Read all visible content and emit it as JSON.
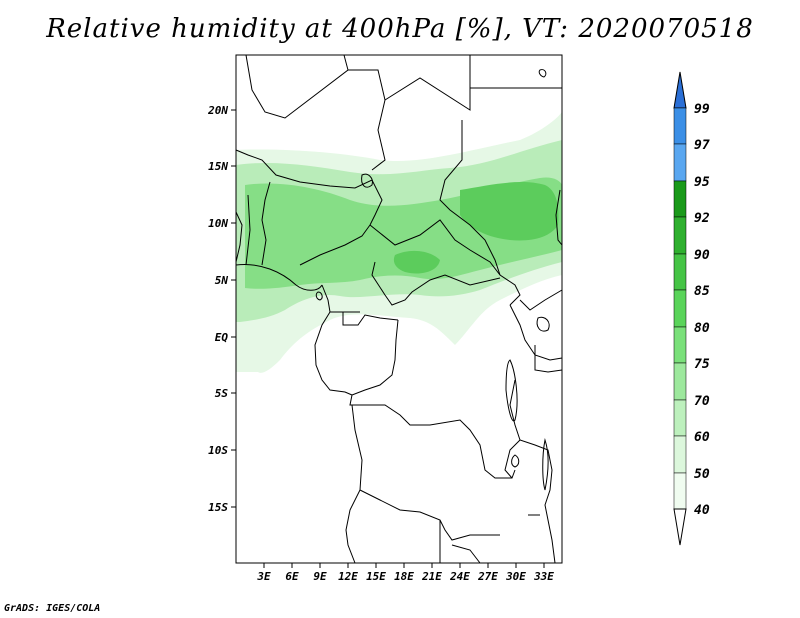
{
  "title": "Relative humidity at 400hPa [%], VT: 2020070518",
  "credit": "GrADS: IGES/COLA",
  "lat_labels": [
    "20N",
    "15N",
    "10N",
    "5N",
    "EQ",
    "5S",
    "10S",
    "15S"
  ],
  "lon_labels": [
    "3E",
    "6E",
    "9E",
    "12E",
    "15E",
    "18E",
    "21E",
    "24E",
    "27E",
    "30E",
    "33E"
  ],
  "colorbar": {
    "labels": [
      "99",
      "97",
      "95",
      "92",
      "90",
      "85",
      "80",
      "75",
      "70",
      "60",
      "50",
      "40"
    ],
    "colors": [
      "#2a6fd6",
      "#3b8fe6",
      "#5aa7f0",
      "#1a9a1a",
      "#2fb02f",
      "#45c445",
      "#5ad45a",
      "#7ae07a",
      "#9de89d",
      "#bdf0bd",
      "#dcf7dc",
      "#f0fcf0"
    ]
  },
  "humidity_colors": {
    "low": "#e6f8e6",
    "mid": "#b9ecb9",
    "high": "#86de86",
    "peak": "#5ccc5c"
  }
}
